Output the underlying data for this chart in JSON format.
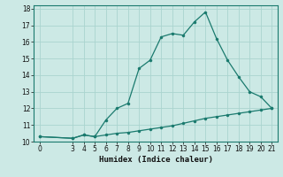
{
  "title": "",
  "xlabel": "Humidex (Indice chaleur)",
  "bg_color": "#cce9e5",
  "line_color": "#1a7a6e",
  "grid_color": "#aad4cf",
  "x_main": [
    0,
    3,
    4,
    5,
    6,
    7,
    8,
    9,
    10,
    11,
    12,
    13,
    14,
    15,
    16,
    17,
    18,
    19,
    20,
    21
  ],
  "y_main": [
    10.3,
    10.2,
    10.4,
    10.3,
    11.3,
    12.0,
    12.3,
    14.4,
    14.9,
    16.3,
    16.5,
    16.4,
    17.2,
    17.8,
    16.2,
    14.9,
    13.9,
    13.0,
    12.7,
    12.0
  ],
  "x_flat": [
    0,
    3,
    4,
    5,
    6,
    7,
    8,
    9,
    10,
    11,
    12,
    13,
    14,
    15,
    16,
    17,
    18,
    19,
    20,
    21
  ],
  "y_flat": [
    10.3,
    10.2,
    10.4,
    10.3,
    10.4,
    10.5,
    10.55,
    10.65,
    10.75,
    10.85,
    10.95,
    11.1,
    11.25,
    11.4,
    11.5,
    11.6,
    11.7,
    11.8,
    11.9,
    12.0
  ],
  "xlim": [
    -0.5,
    21.5
  ],
  "ylim": [
    10,
    18.2
  ],
  "xticks": [
    0,
    3,
    4,
    5,
    6,
    7,
    8,
    9,
    10,
    11,
    12,
    13,
    14,
    15,
    16,
    17,
    18,
    19,
    20,
    21
  ],
  "yticks": [
    10,
    11,
    12,
    13,
    14,
    15,
    16,
    17,
    18
  ],
  "tick_fontsize": 5.5,
  "xlabel_fontsize": 6.5
}
